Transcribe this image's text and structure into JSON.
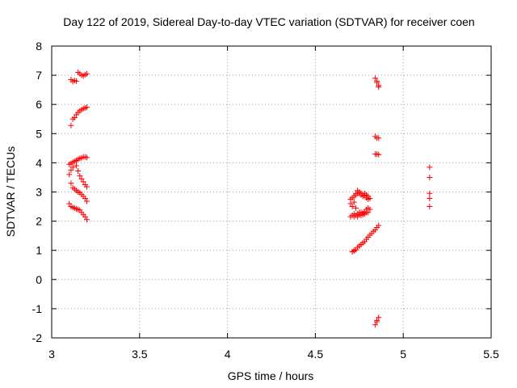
{
  "chart_data": {
    "type": "scatter",
    "title": "Day 122 of 2019, Sidereal Day-to-day VTEC variation (SDTVAR) for receiver coen",
    "xlabel": "GPS time / hours",
    "ylabel": "SDTVAR / TECUs",
    "xlim": [
      3,
      5.5
    ],
    "ylim": [
      -2,
      8
    ],
    "xticks": [
      "3",
      "3.5",
      "4",
      "4.5",
      "5",
      "5.5"
    ],
    "yticks": [
      "-2",
      "-1",
      "0",
      "1",
      "2",
      "3",
      "4",
      "5",
      "6",
      "7",
      "8"
    ],
    "grid": true,
    "legend": "none",
    "marker": "plus",
    "color": "#ff0000",
    "series": [
      {
        "points": [
          [
            3.11,
            6.85
          ],
          [
            3.12,
            6.78
          ],
          [
            3.13,
            6.82
          ],
          [
            3.14,
            6.8
          ],
          [
            3.15,
            7.1
          ],
          [
            3.16,
            7.05
          ],
          [
            3.17,
            7.0
          ],
          [
            3.18,
            6.98
          ],
          [
            3.19,
            7.02
          ],
          [
            3.2,
            7.05
          ],
          [
            3.11,
            5.28
          ],
          [
            3.12,
            5.5
          ],
          [
            3.13,
            5.55
          ],
          [
            3.14,
            5.65
          ],
          [
            3.15,
            5.72
          ],
          [
            3.16,
            5.78
          ],
          [
            3.17,
            5.82
          ],
          [
            3.18,
            5.86
          ],
          [
            3.19,
            5.88
          ],
          [
            3.2,
            5.9
          ],
          [
            3.1,
            3.95
          ],
          [
            3.11,
            3.98
          ],
          [
            3.12,
            4.02
          ],
          [
            3.13,
            4.05
          ],
          [
            3.14,
            4.08
          ],
          [
            3.15,
            4.12
          ],
          [
            3.16,
            4.15
          ],
          [
            3.17,
            4.17
          ],
          [
            3.18,
            4.2
          ],
          [
            3.19,
            4.2
          ],
          [
            3.2,
            4.18
          ],
          [
            3.1,
            3.6
          ],
          [
            3.11,
            3.75
          ],
          [
            3.12,
            3.85
          ],
          [
            3.14,
            3.9
          ],
          [
            3.15,
            3.72
          ],
          [
            3.16,
            3.55
          ],
          [
            3.17,
            3.45
          ],
          [
            3.18,
            3.35
          ],
          [
            3.19,
            3.25
          ],
          [
            3.2,
            3.18
          ],
          [
            3.11,
            3.3
          ],
          [
            3.12,
            3.15
          ],
          [
            3.13,
            3.1
          ],
          [
            3.14,
            3.05
          ],
          [
            3.15,
            3.0
          ],
          [
            3.16,
            2.98
          ],
          [
            3.17,
            2.92
          ],
          [
            3.18,
            2.85
          ],
          [
            3.19,
            2.78
          ],
          [
            3.2,
            2.68
          ],
          [
            3.1,
            2.6
          ],
          [
            3.11,
            2.5
          ],
          [
            3.12,
            2.47
          ],
          [
            3.13,
            2.45
          ],
          [
            3.14,
            2.42
          ],
          [
            3.15,
            2.4
          ],
          [
            3.16,
            2.38
          ],
          [
            3.17,
            2.3
          ],
          [
            3.18,
            2.22
          ],
          [
            3.19,
            2.15
          ],
          [
            3.2,
            2.05
          ],
          [
            4.7,
            2.15
          ],
          [
            4.7,
            2.6
          ],
          [
            4.7,
            2.75
          ],
          [
            4.71,
            2.5
          ],
          [
            4.71,
            2.8
          ],
          [
            4.71,
            2.2
          ],
          [
            4.72,
            2.85
          ],
          [
            4.72,
            2.65
          ],
          [
            4.72,
            2.25
          ],
          [
            4.72,
            2.15
          ],
          [
            4.73,
            2.9
          ],
          [
            4.73,
            2.95
          ],
          [
            4.73,
            2.45
          ],
          [
            4.73,
            2.2
          ],
          [
            4.74,
            3.05
          ],
          [
            4.74,
            2.95
          ],
          [
            4.74,
            2.25
          ],
          [
            4.74,
            2.15
          ],
          [
            4.75,
            3.0
          ],
          [
            4.75,
            2.95
          ],
          [
            4.75,
            2.22
          ],
          [
            4.75,
            2.3
          ],
          [
            4.76,
            2.95
          ],
          [
            4.76,
            2.9
          ],
          [
            4.76,
            2.3
          ],
          [
            4.76,
            2.2
          ],
          [
            4.77,
            2.9
          ],
          [
            4.77,
            2.85
          ],
          [
            4.77,
            2.28
          ],
          [
            4.77,
            2.22
          ],
          [
            4.78,
            2.95
          ],
          [
            4.78,
            2.88
          ],
          [
            4.78,
            2.32
          ],
          [
            4.78,
            2.25
          ],
          [
            4.79,
            2.9
          ],
          [
            4.79,
            2.8
          ],
          [
            4.79,
            2.4
          ],
          [
            4.79,
            2.3
          ],
          [
            4.8,
            2.85
          ],
          [
            4.8,
            2.75
          ],
          [
            4.8,
            2.45
          ],
          [
            4.8,
            2.3
          ],
          [
            4.81,
            2.78
          ],
          [
            4.81,
            2.4
          ],
          [
            4.71,
            0.95
          ],
          [
            4.72,
            0.98
          ],
          [
            4.72,
            1.0
          ],
          [
            4.73,
            1.02
          ],
          [
            4.74,
            1.1
          ],
          [
            4.75,
            1.15
          ],
          [
            4.76,
            1.2
          ],
          [
            4.77,
            1.25
          ],
          [
            4.78,
            1.3
          ],
          [
            4.79,
            1.38
          ],
          [
            4.8,
            1.45
          ],
          [
            4.81,
            1.52
          ],
          [
            4.82,
            1.58
          ],
          [
            4.83,
            1.65
          ],
          [
            4.84,
            1.7
          ],
          [
            4.85,
            1.78
          ],
          [
            4.86,
            1.85
          ],
          [
            4.84,
            6.9
          ],
          [
            4.85,
            6.8
          ],
          [
            4.85,
            6.75
          ],
          [
            4.86,
            6.65
          ],
          [
            4.86,
            6.6
          ],
          [
            4.84,
            4.9
          ],
          [
            4.85,
            4.85
          ],
          [
            4.86,
            4.85
          ],
          [
            4.84,
            4.3
          ],
          [
            4.85,
            4.3
          ],
          [
            4.86,
            4.28
          ],
          [
            4.84,
            -1.55
          ],
          [
            4.85,
            -1.45
          ],
          [
            4.85,
            -1.4
          ],
          [
            4.86,
            -1.3
          ],
          [
            5.15,
            3.85
          ],
          [
            5.15,
            3.5
          ],
          [
            5.15,
            2.95
          ],
          [
            5.15,
            2.78
          ],
          [
            5.15,
            2.5
          ]
        ]
      }
    ]
  }
}
